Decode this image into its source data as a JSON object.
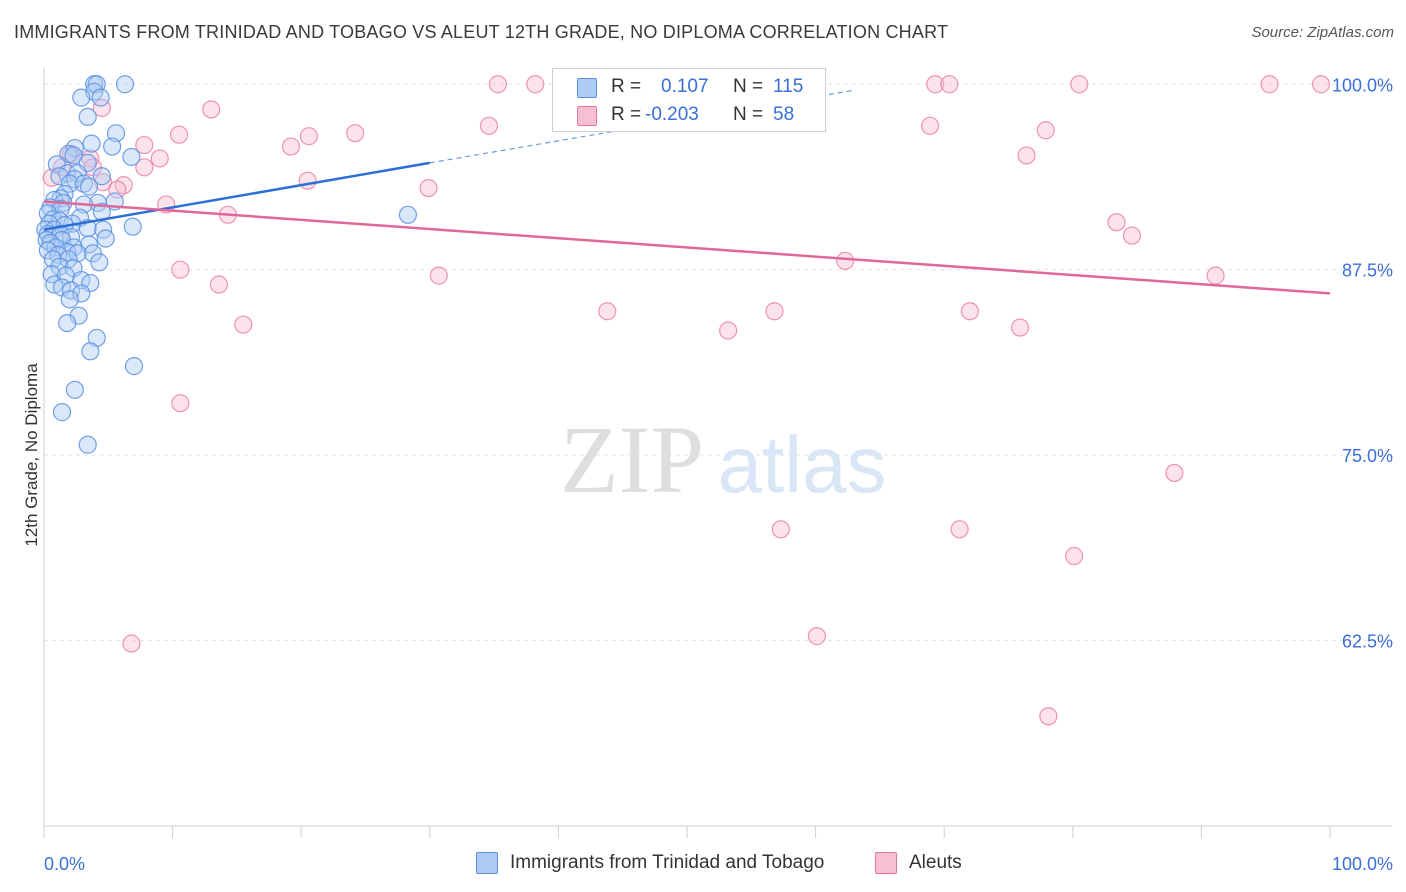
{
  "title": "IMMIGRANTS FROM TRINIDAD AND TOBAGO VS ALEUT 12TH GRADE, NO DIPLOMA CORRELATION CHART",
  "source": "Source: ZipAtlas.com",
  "watermark": {
    "zip": "ZIP",
    "atlas": "atlas"
  },
  "colors": {
    "blue": "#5b8fe0",
    "blue_fill": "#aecbf5",
    "blue_line": "#2d6fd6",
    "pink": "#e8739c",
    "pink_fill": "#f7bfd2",
    "pink_line": "#e0679a",
    "axis_text": "#3a6fd8"
  },
  "stats": {
    "r_label": "R =",
    "n_label": "N =",
    "blue": {
      "r": "0.107",
      "n": "115"
    },
    "pink": {
      "r": "-0.203",
      "n": "58"
    }
  },
  "legend": {
    "blue": "Immigrants from Trinidad and Tobago",
    "pink": "Aleuts"
  },
  "chart_data": {
    "type": "scatter",
    "title": "IMMIGRANTS FROM TRINIDAD AND TOBAGO VS ALEUT 12TH GRADE, NO DIPLOMA CORRELATION CHART",
    "xlabel": "",
    "ylabel": "12th Grade, No Diploma",
    "xlim": [
      0,
      100
    ],
    "ylim": [
      50,
      101.5
    ],
    "x_tick_labels": [
      "0.0%",
      "100.0%"
    ],
    "y_ticks": [
      100,
      87.5,
      75,
      62.5
    ],
    "y_tick_labels": [
      "100.0%",
      "87.5%",
      "75.0%",
      "62.5%"
    ],
    "series": [
      {
        "name": "Immigrants from Trinidad and Tobago",
        "trend": {
          "x": [
            0,
            30
          ],
          "y": [
            90.2,
            94.7
          ],
          "dashed_to": [
            63,
            99.6
          ]
        },
        "points": [
          [
            3.9,
            100
          ],
          [
            4.1,
            100
          ],
          [
            6.3,
            100
          ],
          [
            3.9,
            99.5
          ],
          [
            2.9,
            99.1
          ],
          [
            4.4,
            99.1
          ],
          [
            3.4,
            97.8
          ],
          [
            5.6,
            96.7
          ],
          [
            3.7,
            96
          ],
          [
            5.3,
            95.8
          ],
          [
            2.4,
            95.7
          ],
          [
            1.9,
            95.3
          ],
          [
            6.8,
            95.1
          ],
          [
            2.3,
            95.2
          ],
          [
            1,
            94.6
          ],
          [
            3.4,
            94.7
          ],
          [
            1.8,
            94
          ],
          [
            2.6,
            94
          ],
          [
            1.2,
            93.8
          ],
          [
            4.5,
            93.8
          ],
          [
            2.4,
            93.6
          ],
          [
            2,
            93.3
          ],
          [
            3.1,
            93.3
          ],
          [
            3.5,
            93.1
          ],
          [
            1.6,
            92.6
          ],
          [
            1.3,
            92.3
          ],
          [
            0.8,
            92.2
          ],
          [
            4.2,
            92
          ],
          [
            1.5,
            92
          ],
          [
            5.5,
            92.1
          ],
          [
            3.1,
            91.9
          ],
          [
            0.5,
            91.7
          ],
          [
            1.3,
            91.6
          ],
          [
            4.5,
            91.4
          ],
          [
            0.3,
            91.3
          ],
          [
            2.8,
            91
          ],
          [
            0.7,
            90.9
          ],
          [
            1.2,
            90.8
          ],
          [
            0.4,
            90.6
          ],
          [
            2.2,
            90.6
          ],
          [
            1.6,
            90.5
          ],
          [
            6.9,
            90.4
          ],
          [
            3.4,
            90.3
          ],
          [
            4.6,
            90.2
          ],
          [
            0.1,
            90.2
          ],
          [
            0.8,
            90.2
          ],
          [
            0.3,
            89.9
          ],
          [
            1.3,
            89.9
          ],
          [
            2.1,
            89.7
          ],
          [
            0.2,
            89.5
          ],
          [
            1.4,
            89.5
          ],
          [
            4.8,
            89.6
          ],
          [
            0.5,
            89.3
          ],
          [
            3.5,
            89.2
          ],
          [
            0.9,
            89
          ],
          [
            2.3,
            89
          ],
          [
            0.3,
            88.8
          ],
          [
            1.8,
            88.7
          ],
          [
            3.8,
            88.6
          ],
          [
            1.1,
            88.5
          ],
          [
            2.6,
            88.6
          ],
          [
            0.7,
            88.2
          ],
          [
            1.9,
            88.2
          ],
          [
            4.3,
            88
          ],
          [
            1.2,
            87.7
          ],
          [
            2.3,
            87.6
          ],
          [
            0.6,
            87.2
          ],
          [
            1.7,
            87.1
          ],
          [
            2.9,
            86.8
          ],
          [
            3.6,
            86.6
          ],
          [
            0.8,
            86.5
          ],
          [
            1.4,
            86.3
          ],
          [
            2.1,
            86.1
          ],
          [
            2.9,
            85.9
          ],
          [
            2,
            85.5
          ],
          [
            2.7,
            84.4
          ],
          [
            1.8,
            83.9
          ],
          [
            4.1,
            82.9
          ],
          [
            3.6,
            82
          ],
          [
            7,
            81
          ],
          [
            2.4,
            79.4
          ],
          [
            1.4,
            77.9
          ],
          [
            3.4,
            75.7
          ],
          [
            28.3,
            91.2
          ]
        ]
      },
      {
        "name": "Aleuts",
        "trend": {
          "x": [
            0,
            100
          ],
          "y": [
            92.1,
            85.9
          ]
        },
        "points": [
          [
            35.3,
            100
          ],
          [
            38.2,
            100
          ],
          [
            47.3,
            100
          ],
          [
            55.5,
            100
          ],
          [
            69.3,
            100
          ],
          [
            70.4,
            100
          ],
          [
            80.5,
            100
          ],
          [
            95.3,
            100
          ],
          [
            99.3,
            100
          ],
          [
            13,
            98.3
          ],
          [
            4.5,
            98.4
          ],
          [
            34.6,
            97.2
          ],
          [
            68.9,
            97.2
          ],
          [
            24.2,
            96.7
          ],
          [
            20.6,
            96.5
          ],
          [
            10.5,
            96.6
          ],
          [
            77.9,
            96.9
          ],
          [
            7.8,
            95.9
          ],
          [
            19.2,
            95.8
          ],
          [
            2.1,
            95.3
          ],
          [
            9,
            95
          ],
          [
            76.4,
            95.2
          ],
          [
            3.6,
            95
          ],
          [
            3.8,
            94.4
          ],
          [
            7.8,
            94.4
          ],
          [
            1.4,
            94.4
          ],
          [
            0.6,
            93.7
          ],
          [
            20.5,
            93.5
          ],
          [
            4.6,
            93.4
          ],
          [
            6.2,
            93.2
          ],
          [
            5.7,
            92.9
          ],
          [
            29.9,
            93
          ],
          [
            9.5,
            91.9
          ],
          [
            14.3,
            91.2
          ],
          [
            83.4,
            90.7
          ],
          [
            84.6,
            89.8
          ],
          [
            10.6,
            87.5
          ],
          [
            62.3,
            88.1
          ],
          [
            30.7,
            87.1
          ],
          [
            91.1,
            87.1
          ],
          [
            13.6,
            86.5
          ],
          [
            43.8,
            84.7
          ],
          [
            56.8,
            84.7
          ],
          [
            72,
            84.7
          ],
          [
            15.5,
            83.8
          ],
          [
            53.2,
            83.4
          ],
          [
            75.9,
            83.6
          ],
          [
            10.6,
            78.5
          ],
          [
            87.9,
            73.8
          ],
          [
            57.3,
            70
          ],
          [
            71.2,
            70
          ],
          [
            80.1,
            68.2
          ],
          [
            6.8,
            62.3
          ],
          [
            60.1,
            62.8
          ],
          [
            78.1,
            57.4
          ]
        ]
      }
    ]
  }
}
